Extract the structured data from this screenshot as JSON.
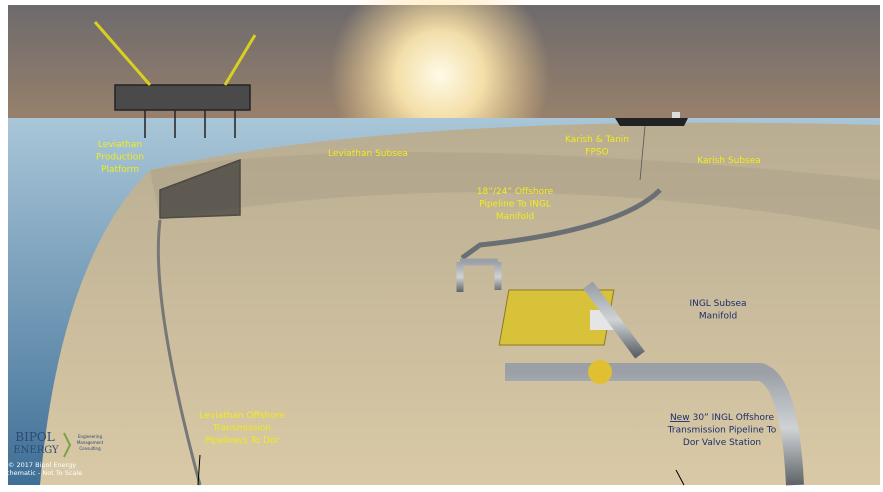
{
  "labels": [
    {
      "lines": [
        "Leviathan",
        "Production",
        "Platform"
      ]
    },
    {
      "lines": [
        "Leviathan Subsea"
      ]
    },
    {
      "lines": [
        "Karish & Tanin",
        "FPSO"
      ]
    },
    {
      "lines": [
        "Karish Subsea"
      ]
    },
    {
      "lines": [
        "18”/24” Offshore",
        "Pipeline To INGL",
        "Manifold"
      ]
    },
    {
      "lines": [
        "INGL Subsea",
        "Manifold"
      ]
    },
    {
      "lines": [
        "Leviathan Offshore",
        "Transmission",
        "Pipeline/s To Dor"
      ]
    }
  ],
  "new_pipeline": {
    "emphasis": "New",
    "lines": [
      "30” INGL Offshore",
      "Transmission Pipeline To",
      "Dor Valve Station"
    ]
  },
  "logo": {
    "name": "BIPOL",
    "sub": "ENERGY",
    "tagline": [
      "Engineering",
      "Management",
      "Consulting"
    ]
  },
  "footer": [
    "© 2017 Bipol Energy",
    "Schematic - Not To Scale"
  ]
}
